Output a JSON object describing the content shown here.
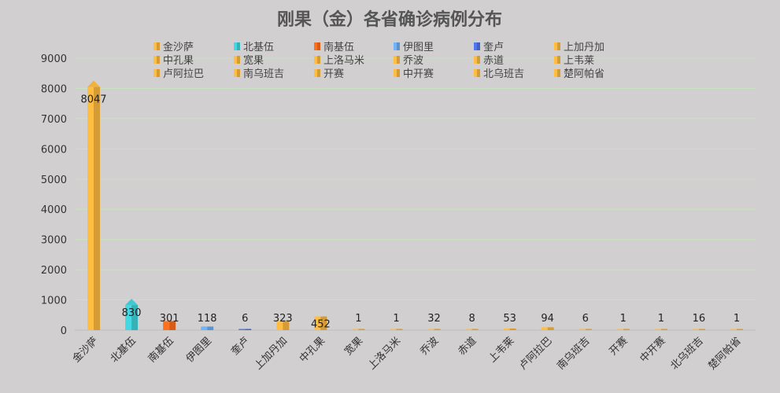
{
  "chart_data": {
    "type": "bar",
    "title": "刚果（金）各省确诊病例分布",
    "xlabel": "",
    "ylabel": "",
    "ylim": [
      0,
      9000
    ],
    "yticks": [
      0,
      1000,
      2000,
      3000,
      4000,
      5000,
      6000,
      7000,
      8000,
      9000
    ],
    "grid": true,
    "legend_position": "top",
    "categories": [
      "金沙萨",
      "北基伍",
      "南基伍",
      "伊图里",
      "奎卢",
      "上加丹加",
      "中孔果",
      "宽果",
      "上洛马米",
      "乔波",
      "赤道",
      "上韦莱",
      "卢阿拉巴",
      "南乌班吉",
      "开赛",
      "中开赛",
      "北乌班吉",
      "楚阿帕省"
    ],
    "values": [
      8047,
      830,
      301,
      118,
      6,
      323,
      452,
      1,
      1,
      32,
      8,
      53,
      94,
      6,
      1,
      1,
      16,
      1
    ],
    "data_labels": [
      "8047",
      "830",
      "301",
      "118",
      "6",
      "323",
      "452",
      "1",
      "1",
      "32",
      "8",
      "53",
      "94",
      "6",
      "1",
      "1",
      "16",
      "1"
    ],
    "colors": [
      "#f2b03d",
      "#3fc9d1",
      "#f26a1b",
      "#6aa7e8",
      "#4a6fe0",
      "#f2b03d",
      "#f2b03d",
      "#f2b03d",
      "#f2b03d",
      "#f2b03d",
      "#f2b03d",
      "#f2b03d",
      "#f2b03d",
      "#f2b03d",
      "#f2b03d",
      "#f2b03d",
      "#f2b03d",
      "#f2b03d"
    ]
  }
}
